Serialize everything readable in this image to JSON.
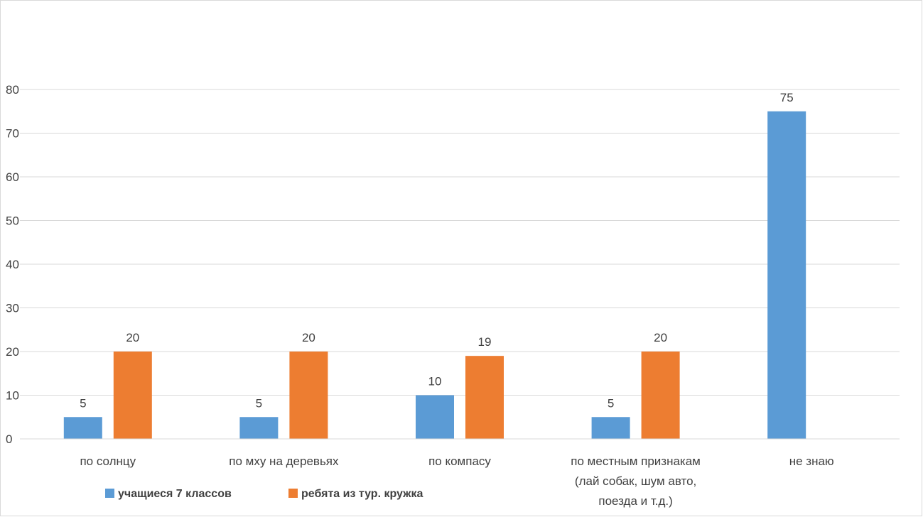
{
  "chart_data": {
    "type": "bar",
    "categories": [
      [
        "по солнцу"
      ],
      [
        "по мху на деревьях"
      ],
      [
        "по компасу"
      ],
      [
        "по местным признакам",
        "(лай собак, шум авто,",
        "поезда и т.д.)"
      ],
      [
        "не знаю"
      ]
    ],
    "series": [
      {
        "name": "учащиеся 7 классов",
        "values": [
          5,
          5,
          10,
          5,
          75
        ],
        "color": "#5B9BD5"
      },
      {
        "name": "ребята из тур. кружка",
        "values": [
          20,
          20,
          19,
          20,
          null
        ],
        "color": "#ED7D31"
      }
    ],
    "data_labels": [
      [
        "5",
        "5",
        "10",
        "5",
        "75"
      ],
      [
        "20",
        "20",
        "19",
        "20",
        ""
      ]
    ],
    "yticks": [
      "0",
      "10",
      "20",
      "30",
      "40",
      "50",
      "60",
      "70",
      "80"
    ],
    "ylim": [
      0,
      80
    ],
    "grid": true,
    "legend": "bottom-left",
    "gridline_color": "#D9D9D9",
    "border_color": "#D9D9D9"
  }
}
